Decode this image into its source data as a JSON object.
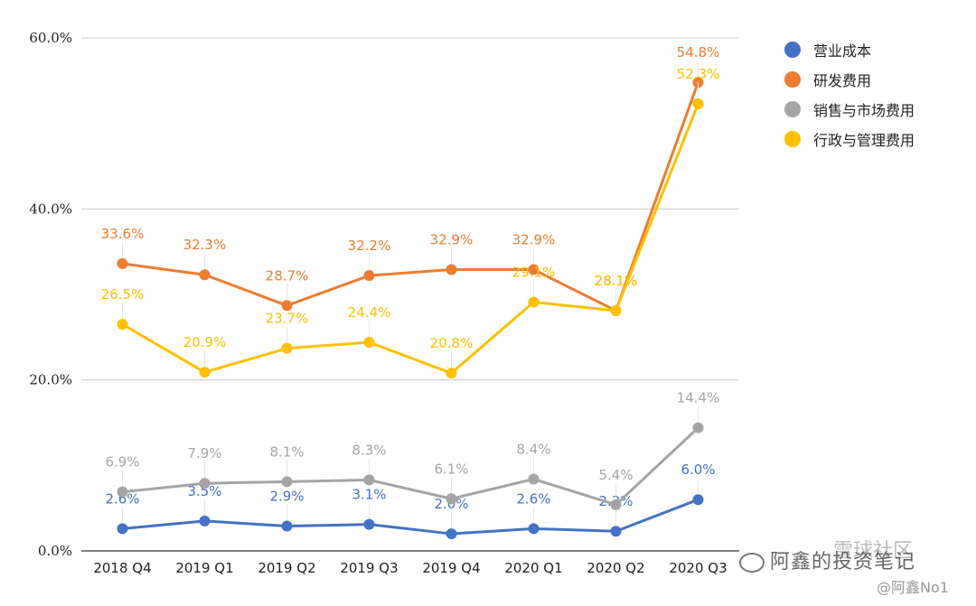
{
  "chart_data": {
    "type": "line",
    "categories": [
      "2018 Q4",
      "2019 Q1",
      "2019 Q2",
      "2019 Q3",
      "2019 Q4",
      "2020 Q1",
      "2020 Q2",
      "2020 Q3"
    ],
    "yticks": [
      "0.0%",
      "20.0%",
      "40.0%",
      "60.0%"
    ],
    "ylim": [
      0,
      60
    ],
    "grid": true,
    "legend_position": "top-right",
    "series": [
      {
        "name": "营业成本",
        "color": "#4472C4",
        "values": [
          2.6,
          3.5,
          2.9,
          3.1,
          2.0,
          2.6,
          2.3,
          6.0
        ],
        "labels": [
          "2.6%",
          "3.5%",
          "2.9%",
          "3.1%",
          "2.0%",
          "2.6%",
          "2.3%",
          "6.0%"
        ]
      },
      {
        "name": "研发费用",
        "color": "#ED7D31",
        "values": [
          33.6,
          32.3,
          28.7,
          32.2,
          32.9,
          32.9,
          28.1,
          54.8
        ],
        "labels": [
          "33.6%",
          "32.3%",
          "28.7%",
          "32.2%",
          "32.9%",
          "32.9%",
          "28.1%",
          "54.8%"
        ]
      },
      {
        "name": "销售与市场费用",
        "color": "#A5A5A5",
        "values": [
          6.9,
          7.9,
          8.1,
          8.3,
          6.1,
          8.4,
          5.4,
          14.4
        ],
        "labels": [
          "6.9%",
          "7.9%",
          "8.1%",
          "8.3%",
          "6.1%",
          "8.4%",
          "5.4%",
          "14.4%"
        ]
      },
      {
        "name": "行政与管理费用",
        "color": "#FFC000",
        "values": [
          26.5,
          20.9,
          23.7,
          24.4,
          20.8,
          29.1,
          28.1,
          52.3
        ],
        "labels": [
          "26.5%",
          "20.9%",
          "23.7%",
          "24.4%",
          "20.8%",
          "29.1%",
          "28.1%",
          "52.3%"
        ]
      }
    ]
  },
  "watermark": {
    "brand": "阿鑫的投资笔记",
    "community": "雪球社区",
    "handle": "@阿鑫No1"
  }
}
